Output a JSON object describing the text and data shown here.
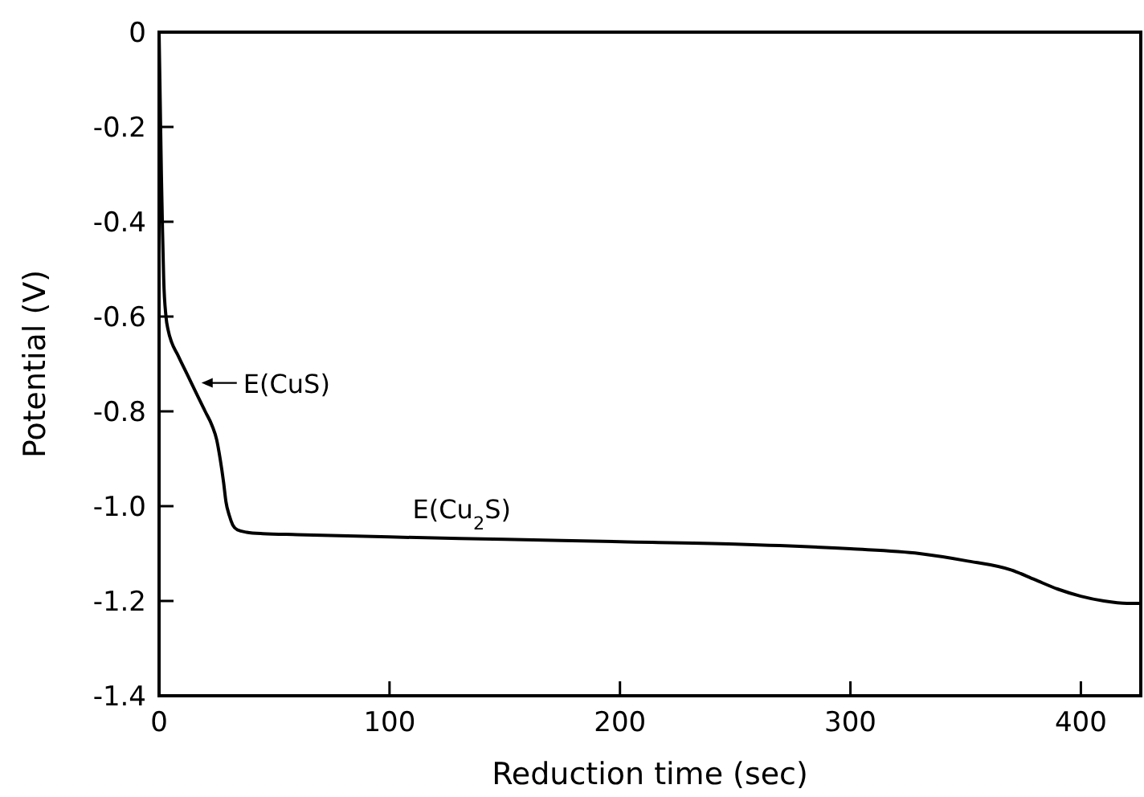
{
  "chart_data": {
    "type": "line",
    "xlabel": "Reduction time (sec)",
    "ylabel": "Potential (V)",
    "xlim": [
      0,
      426
    ],
    "xticks": [
      0,
      100,
      200,
      300,
      400
    ],
    "ylim": [
      -1.4,
      0
    ],
    "yticks": [
      {
        "value": 0,
        "label": "0"
      },
      -0.2,
      -0.4,
      -0.6,
      -0.8,
      {
        "value": -1,
        "label": "-1.0"
      },
      -1.2,
      -1.4
    ],
    "grid": false,
    "marker": "none",
    "line_style": "solid",
    "annotations": [
      {
        "text": "E(CuS)",
        "x": 17,
        "y": -0.74
      },
      {
        "text": "E(Cu$_{2}$S)",
        "x": 110,
        "y": -1.06
      }
    ],
    "series": [
      {
        "color": "#000000",
        "x": [
          0,
          0.5,
          1,
          1.5,
          2,
          3,
          4,
          5.5,
          8,
          11,
          14,
          17,
          20,
          23,
          25,
          26.5,
          28,
          29,
          30.5,
          32,
          34,
          38,
          45,
          60,
          100,
          150,
          200,
          250,
          300,
          330,
          350,
          370,
          380,
          390,
          400,
          410,
          420,
          426
        ],
        "values": [
          0,
          -0.15,
          -0.3,
          -0.42,
          -0.52,
          -0.6,
          -0.63,
          -0.655,
          -0.68,
          -0.71,
          -0.74,
          -0.77,
          -0.8,
          -0.83,
          -0.86,
          -0.9,
          -0.95,
          -0.99,
          -1.02,
          -1.04,
          -1.05,
          -1.055,
          -1.058,
          -1.06,
          -1.065,
          -1.07,
          -1.075,
          -1.08,
          -1.09,
          -1.1,
          -1.115,
          -1.135,
          -1.155,
          -1.175,
          -1.19,
          -1.2,
          -1.205,
          -1.205
        ]
      }
    ]
  }
}
